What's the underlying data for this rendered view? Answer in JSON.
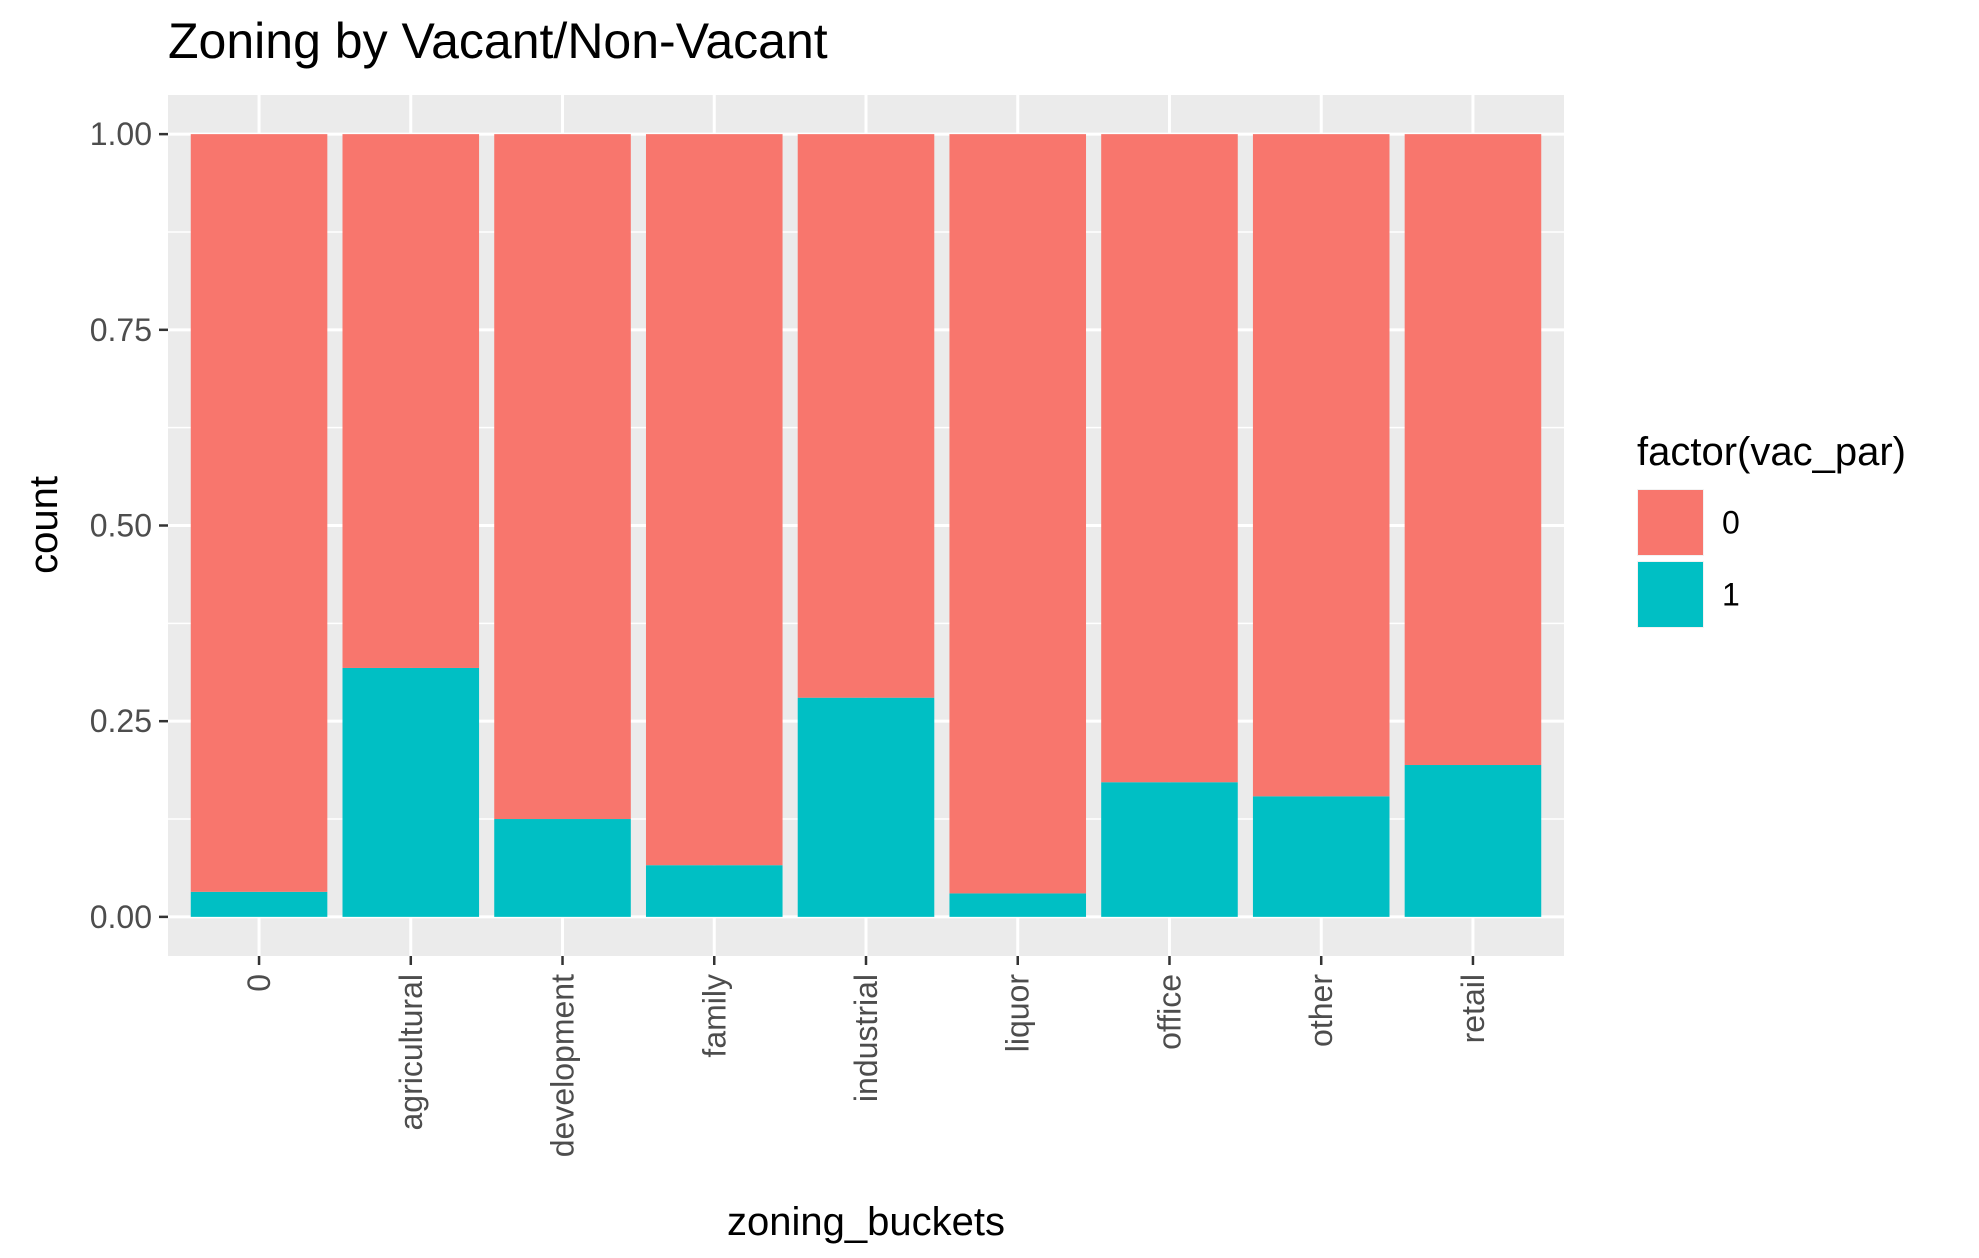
{
  "chart_data": {
    "type": "bar",
    "stacking": "fill",
    "title": "Zoning by Vacant/Non-Vacant",
    "xlabel": "zoning_buckets",
    "ylabel": "count",
    "categories": [
      "0",
      "agricultural",
      "development",
      "family",
      "industrial",
      "liquor",
      "office",
      "other",
      "retail"
    ],
    "series": [
      {
        "name": "0",
        "color": "#F8766D",
        "values": [
          0.968,
          0.682,
          0.875,
          0.934,
          0.72,
          0.97,
          0.828,
          0.846,
          0.806
        ]
      },
      {
        "name": "1",
        "color": "#00BFC4",
        "values": [
          0.032,
          0.318,
          0.125,
          0.066,
          0.28,
          0.03,
          0.172,
          0.154,
          0.194
        ]
      }
    ],
    "ylim": [
      -0.05,
      1.05
    ],
    "yticks": [
      0,
      0.25,
      0.5,
      0.75,
      1
    ],
    "ytick_labels": [
      "0.00",
      "0.25",
      "0.50",
      "0.75",
      "1.00"
    ],
    "stack_order": [
      "1",
      "0"
    ],
    "grid": true,
    "panel_background": "#EBEBEB",
    "legend": {
      "title": "factor(vac_par)",
      "placement": "right",
      "entries": [
        "0",
        "1"
      ]
    }
  }
}
